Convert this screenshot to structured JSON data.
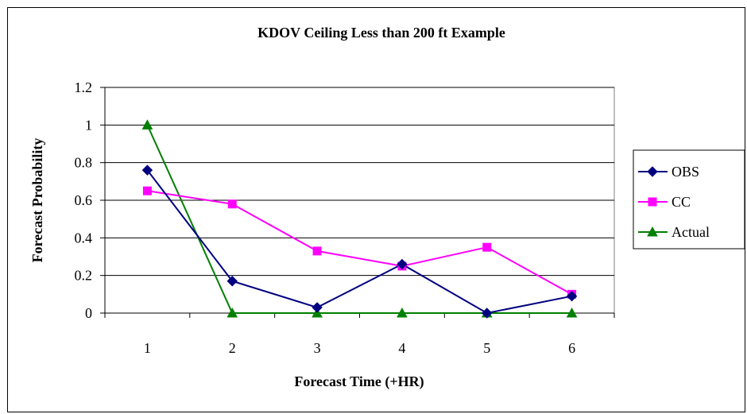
{
  "chart_data": {
    "type": "line",
    "title": "KDOV Ceiling Less than 200 ft Example",
    "xlabel": "Forecast Time (+HR)",
    "ylabel": "Forecast Probability",
    "categories": [
      "1",
      "2",
      "3",
      "4",
      "5",
      "6"
    ],
    "ylim": [
      0,
      1.2
    ],
    "yticks": [
      "0",
      "0.2",
      "0.4",
      "0.6",
      "0.8",
      "1",
      "1.2"
    ],
    "grid": true,
    "legend_position": "right",
    "series": [
      {
        "name": "OBS",
        "values": [
          0.76,
          0.17,
          0.03,
          0.26,
          0.0,
          0.09
        ],
        "color": "#000080",
        "marker": "diamond"
      },
      {
        "name": "CC",
        "values": [
          0.65,
          0.58,
          0.33,
          0.25,
          0.35,
          0.1
        ],
        "color": "#FF00FF",
        "marker": "square"
      },
      {
        "name": "Actual",
        "values": [
          1.0,
          0.0,
          0.0,
          0.0,
          0.0,
          0.0
        ],
        "color": "#008000",
        "marker": "triangle"
      }
    ]
  }
}
